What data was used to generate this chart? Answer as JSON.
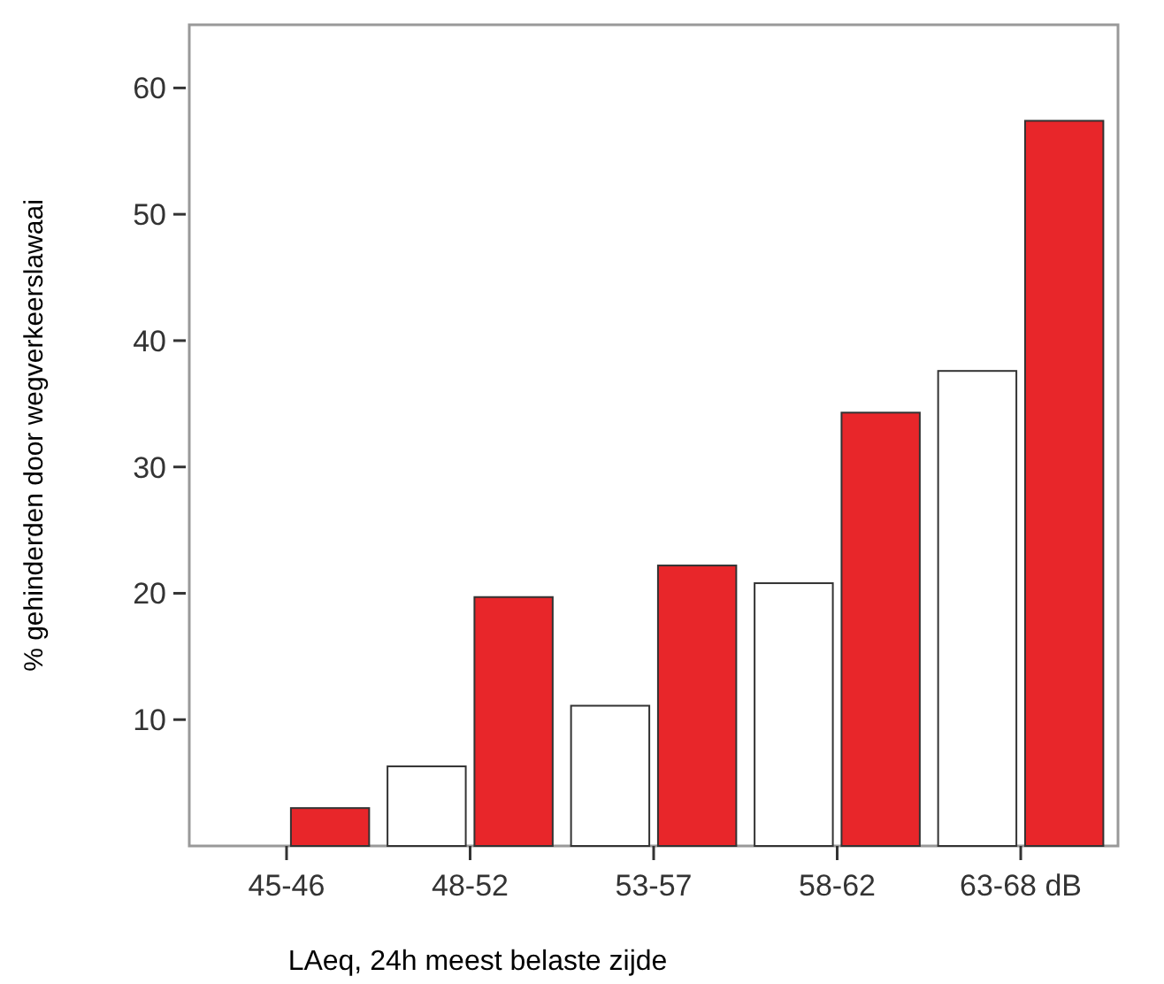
{
  "chart_data": {
    "type": "bar",
    "ylabel": "% gehinderden door wegverkeerslawaai",
    "xlabel": "LAeq, 24h meest belaste zijde",
    "categories": [
      "45-46",
      "48-52",
      "53-57",
      "58-62",
      "63-68 dB"
    ],
    "series": [
      {
        "color": "#ffffff",
        "values": [
          null,
          6.3,
          11.1,
          20.8,
          37.6
        ]
      },
      {
        "color": "#e8262a",
        "values": [
          3,
          19.7,
          22.2,
          34.3,
          57.4
        ]
      }
    ],
    "ylim": [
      0,
      65
    ],
    "yticks": [
      10,
      20,
      30,
      40,
      50,
      60
    ],
    "grid": false
  }
}
